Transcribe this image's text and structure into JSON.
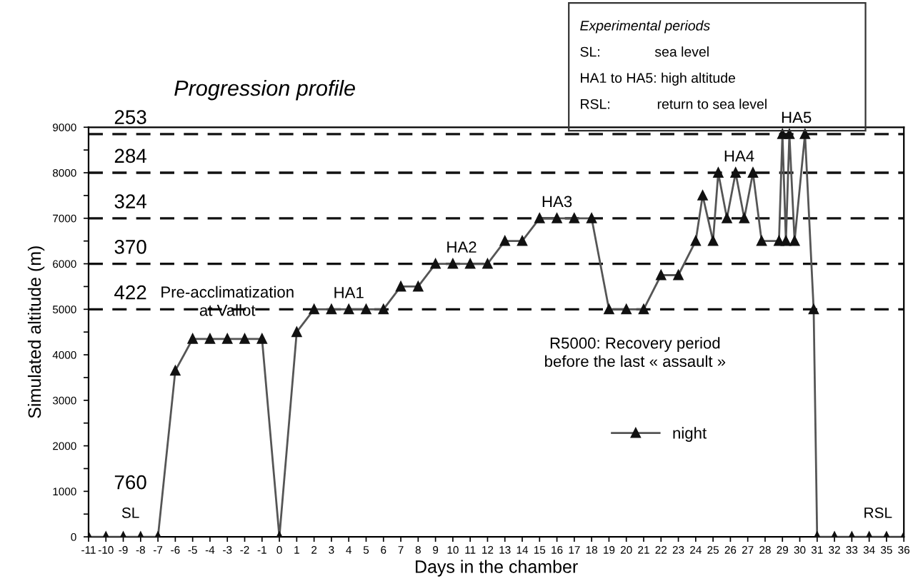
{
  "chart_data": {
    "type": "line",
    "title": "Progression profile",
    "xlabel": "Days in the chamber",
    "ylabel": "Simulated altitude (m)",
    "x": [
      -11,
      -10,
      -9,
      -8,
      -7,
      -6,
      -5,
      -4,
      -3,
      -2,
      -1,
      0,
      1,
      2,
      3,
      4,
      5,
      6,
      7,
      8,
      9,
      10,
      11,
      12,
      13,
      14,
      15,
      16,
      17,
      18,
      19,
      20,
      21,
      22,
      23,
      24,
      24.4,
      25,
      25.3,
      25.8,
      26.3,
      26.8,
      27.3,
      27.8,
      28.8,
      29,
      29.2,
      29.4,
      29.7,
      30.3,
      30.8,
      31,
      32,
      33,
      34,
      35,
      36
    ],
    "series": [
      {
        "name": "night",
        "color": "#555555",
        "values": [
          0,
          0,
          0,
          0,
          0,
          3650,
          4350,
          4350,
          4350,
          4350,
          4350,
          0,
          4500,
          5000,
          5000,
          5000,
          5000,
          5000,
          5500,
          5500,
          6000,
          6000,
          6000,
          6000,
          6500,
          6500,
          7000,
          7000,
          7000,
          7000,
          5000,
          5000,
          5000,
          5750,
          5750,
          6500,
          7500,
          6500,
          8000,
          7000,
          8000,
          7000,
          8000,
          6500,
          6500,
          8850,
          6500,
          8850,
          6500,
          8850,
          5000,
          0,
          0,
          0,
          0,
          0,
          0
        ]
      }
    ],
    "marker": "triangle",
    "line_style": "solid",
    "grid": false,
    "legend": "center",
    "xlim": [
      -11,
      36
    ],
    "xticks": [
      -11,
      -10,
      -9,
      -8,
      -7,
      -6,
      -5,
      -4,
      -3,
      -2,
      -1,
      0,
      1,
      2,
      3,
      4,
      5,
      6,
      7,
      8,
      9,
      10,
      11,
      12,
      13,
      14,
      15,
      16,
      17,
      18,
      19,
      20,
      21,
      22,
      23,
      24,
      25,
      26,
      27,
      28,
      29,
      30,
      31,
      32,
      33,
      34,
      35,
      36
    ],
    "ylim": [
      0,
      9000
    ],
    "yticks": [
      0,
      1000,
      2000,
      3000,
      4000,
      5000,
      6000,
      7000,
      8000,
      9000
    ],
    "ref_lines": [
      {
        "axis": "y",
        "value": 8850,
        "line_style": "dashed"
      },
      {
        "axis": "y",
        "value": 8000,
        "line_style": "dashed"
      },
      {
        "axis": "y",
        "value": 7000,
        "line_style": "dashed"
      },
      {
        "axis": "y",
        "value": 6000,
        "line_style": "dashed"
      },
      {
        "axis": "y",
        "value": 5000,
        "line_style": "dashed"
      }
    ],
    "annotations": [
      "Experimental periods",
      "SL:              sea level",
      "HA1 to HA5: high altitude",
      "RSL:            return to sea level",
      {
        "text": "253",
        "x": -9.5,
        "y": 8850
      },
      {
        "text": "284",
        "x": -9.5,
        "y": 8000
      },
      {
        "text": "324",
        "x": -9.5,
        "y": 7000
      },
      {
        "text": "370",
        "x": -9.5,
        "y": 6000
      },
      {
        "text": "422",
        "x": -9.5,
        "y": 5000
      },
      {
        "text": "760",
        "x": -9.5,
        "y": 0
      },
      {
        "text": "SL",
        "x": -9.5,
        "y": 0
      },
      {
        "text": "Pre-acclimatization\nat Vallot",
        "x": -3,
        "y": 4350
      },
      {
        "text": "HA1",
        "x": 4,
        "y": 5000
      },
      {
        "text": "HA2",
        "x": 10.5,
        "y": 6000
      },
      {
        "text": "HA3",
        "x": 16,
        "y": 7000
      },
      {
        "text": "HA4",
        "x": 26.5,
        "y": 8000
      },
      {
        "text": "HA5",
        "x": 29.8,
        "y": 8850
      },
      {
        "text": "R5000: Recovery period\nbefore the last « assault »",
        "x": 20.5,
        "y": 5000
      },
      {
        "text": "RSL",
        "x": 34.5,
        "y": 0
      }
    ]
  }
}
